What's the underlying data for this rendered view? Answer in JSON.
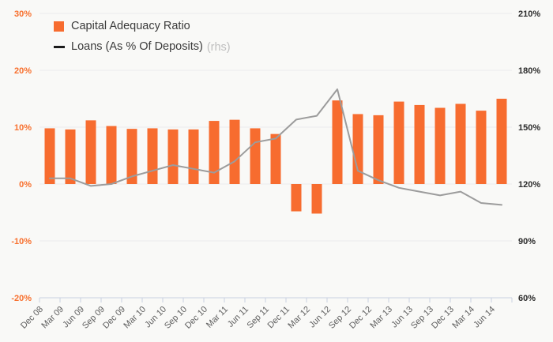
{
  "chart_data": {
    "type": "combo-bar-line",
    "title": "",
    "categories": [
      "Dec 08",
      "Mar 09",
      "Jun 09",
      "Sep 09",
      "Dec 09",
      "Mar 10",
      "Jun 10",
      "Sep 10",
      "Dec 10",
      "Mar 11",
      "Jun 11",
      "Sep 11",
      "Dec 11",
      "Mar 12",
      "Jun 12",
      "Sep 12",
      "Dec 12",
      "Mar 13",
      "Jun 13",
      "Sep 13",
      "Dec 13",
      "Mar 14",
      "Jun 14"
    ],
    "series": [
      {
        "name": "Capital Adequacy Ratio",
        "type": "bar",
        "axis": "left",
        "color": "#f76c2f",
        "values": [
          9.8,
          9.6,
          11.2,
          10.2,
          9.7,
          9.8,
          9.6,
          9.6,
          11.1,
          11.3,
          9.8,
          8.8,
          -4.8,
          -5.2,
          14.7,
          12.3,
          12.1,
          14.5,
          13.9,
          13.4,
          14.1,
          12.9,
          15.0
        ]
      },
      {
        "name": "Loans (As % Of Deposits)",
        "type": "line",
        "axis": "right",
        "color": "#9c9c9c",
        "values": [
          123,
          123,
          119,
          120,
          124,
          127,
          130,
          128,
          126,
          132,
          142,
          144,
          154,
          156,
          170,
          127,
          122,
          118,
          116,
          114,
          116,
          110,
          109
        ]
      }
    ],
    "rhs_label": "(rhs)",
    "left_axis": {
      "min": -20,
      "max": 30,
      "tick_values": [
        30,
        20,
        10,
        0,
        -10,
        -20
      ],
      "tick_labels": [
        "30%",
        "20%",
        "10%",
        "0%",
        "-10%",
        "-20%"
      ],
      "color": "#f8702e"
    },
    "right_axis": {
      "min": 60,
      "max": 210,
      "tick_values": [
        210,
        180,
        150,
        120,
        90,
        60
      ],
      "tick_labels": [
        "210%",
        "180%",
        "150%",
        "120%",
        "90%",
        "60%"
      ],
      "color": "#2b2b2b"
    },
    "grid": true,
    "legend_position": "top-left",
    "colors": {
      "background": "#f9f9f7",
      "gridline": "#ececec",
      "axis_line": "#c9d1e1",
      "x_label": "#5f5f5f",
      "legend_text": "#3a3a3a",
      "legend_rhs_text": "#bfbfbf",
      "legend_line_marker": "#1b1b1b"
    }
  }
}
